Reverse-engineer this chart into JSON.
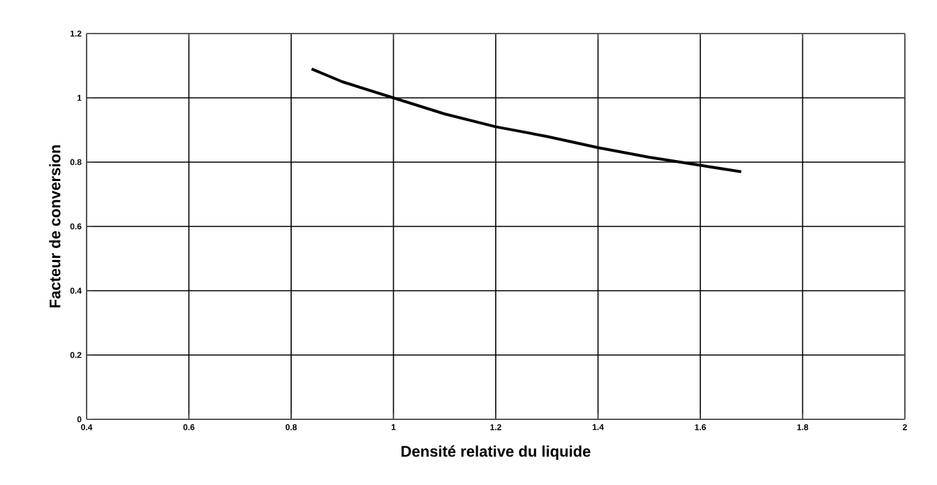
{
  "chart_data": {
    "type": "line",
    "xlabel": "Densité relative du liquide",
    "ylabel": "Facteur de conversion",
    "x": [
      0.84,
      0.9,
      1.0,
      1.1,
      1.2,
      1.3,
      1.4,
      1.5,
      1.6,
      1.68
    ],
    "series": [
      {
        "color": "#000000",
        "values": [
          1.09,
          1.05,
          1.0,
          0.95,
          0.91,
          0.88,
          0.845,
          0.815,
          0.79,
          0.77
        ]
      }
    ],
    "xlim": [
      0.4,
      2
    ],
    "ylim": [
      0,
      1.2
    ],
    "xticks": [
      0.4,
      0.6,
      0.8,
      1,
      1.2,
      1.4,
      1.6,
      1.8,
      2
    ],
    "yticks": [
      0,
      0.2,
      0.4,
      0.6,
      0.8,
      1,
      1.2
    ],
    "grid": true,
    "marker": "none",
    "line_style": "solid"
  }
}
